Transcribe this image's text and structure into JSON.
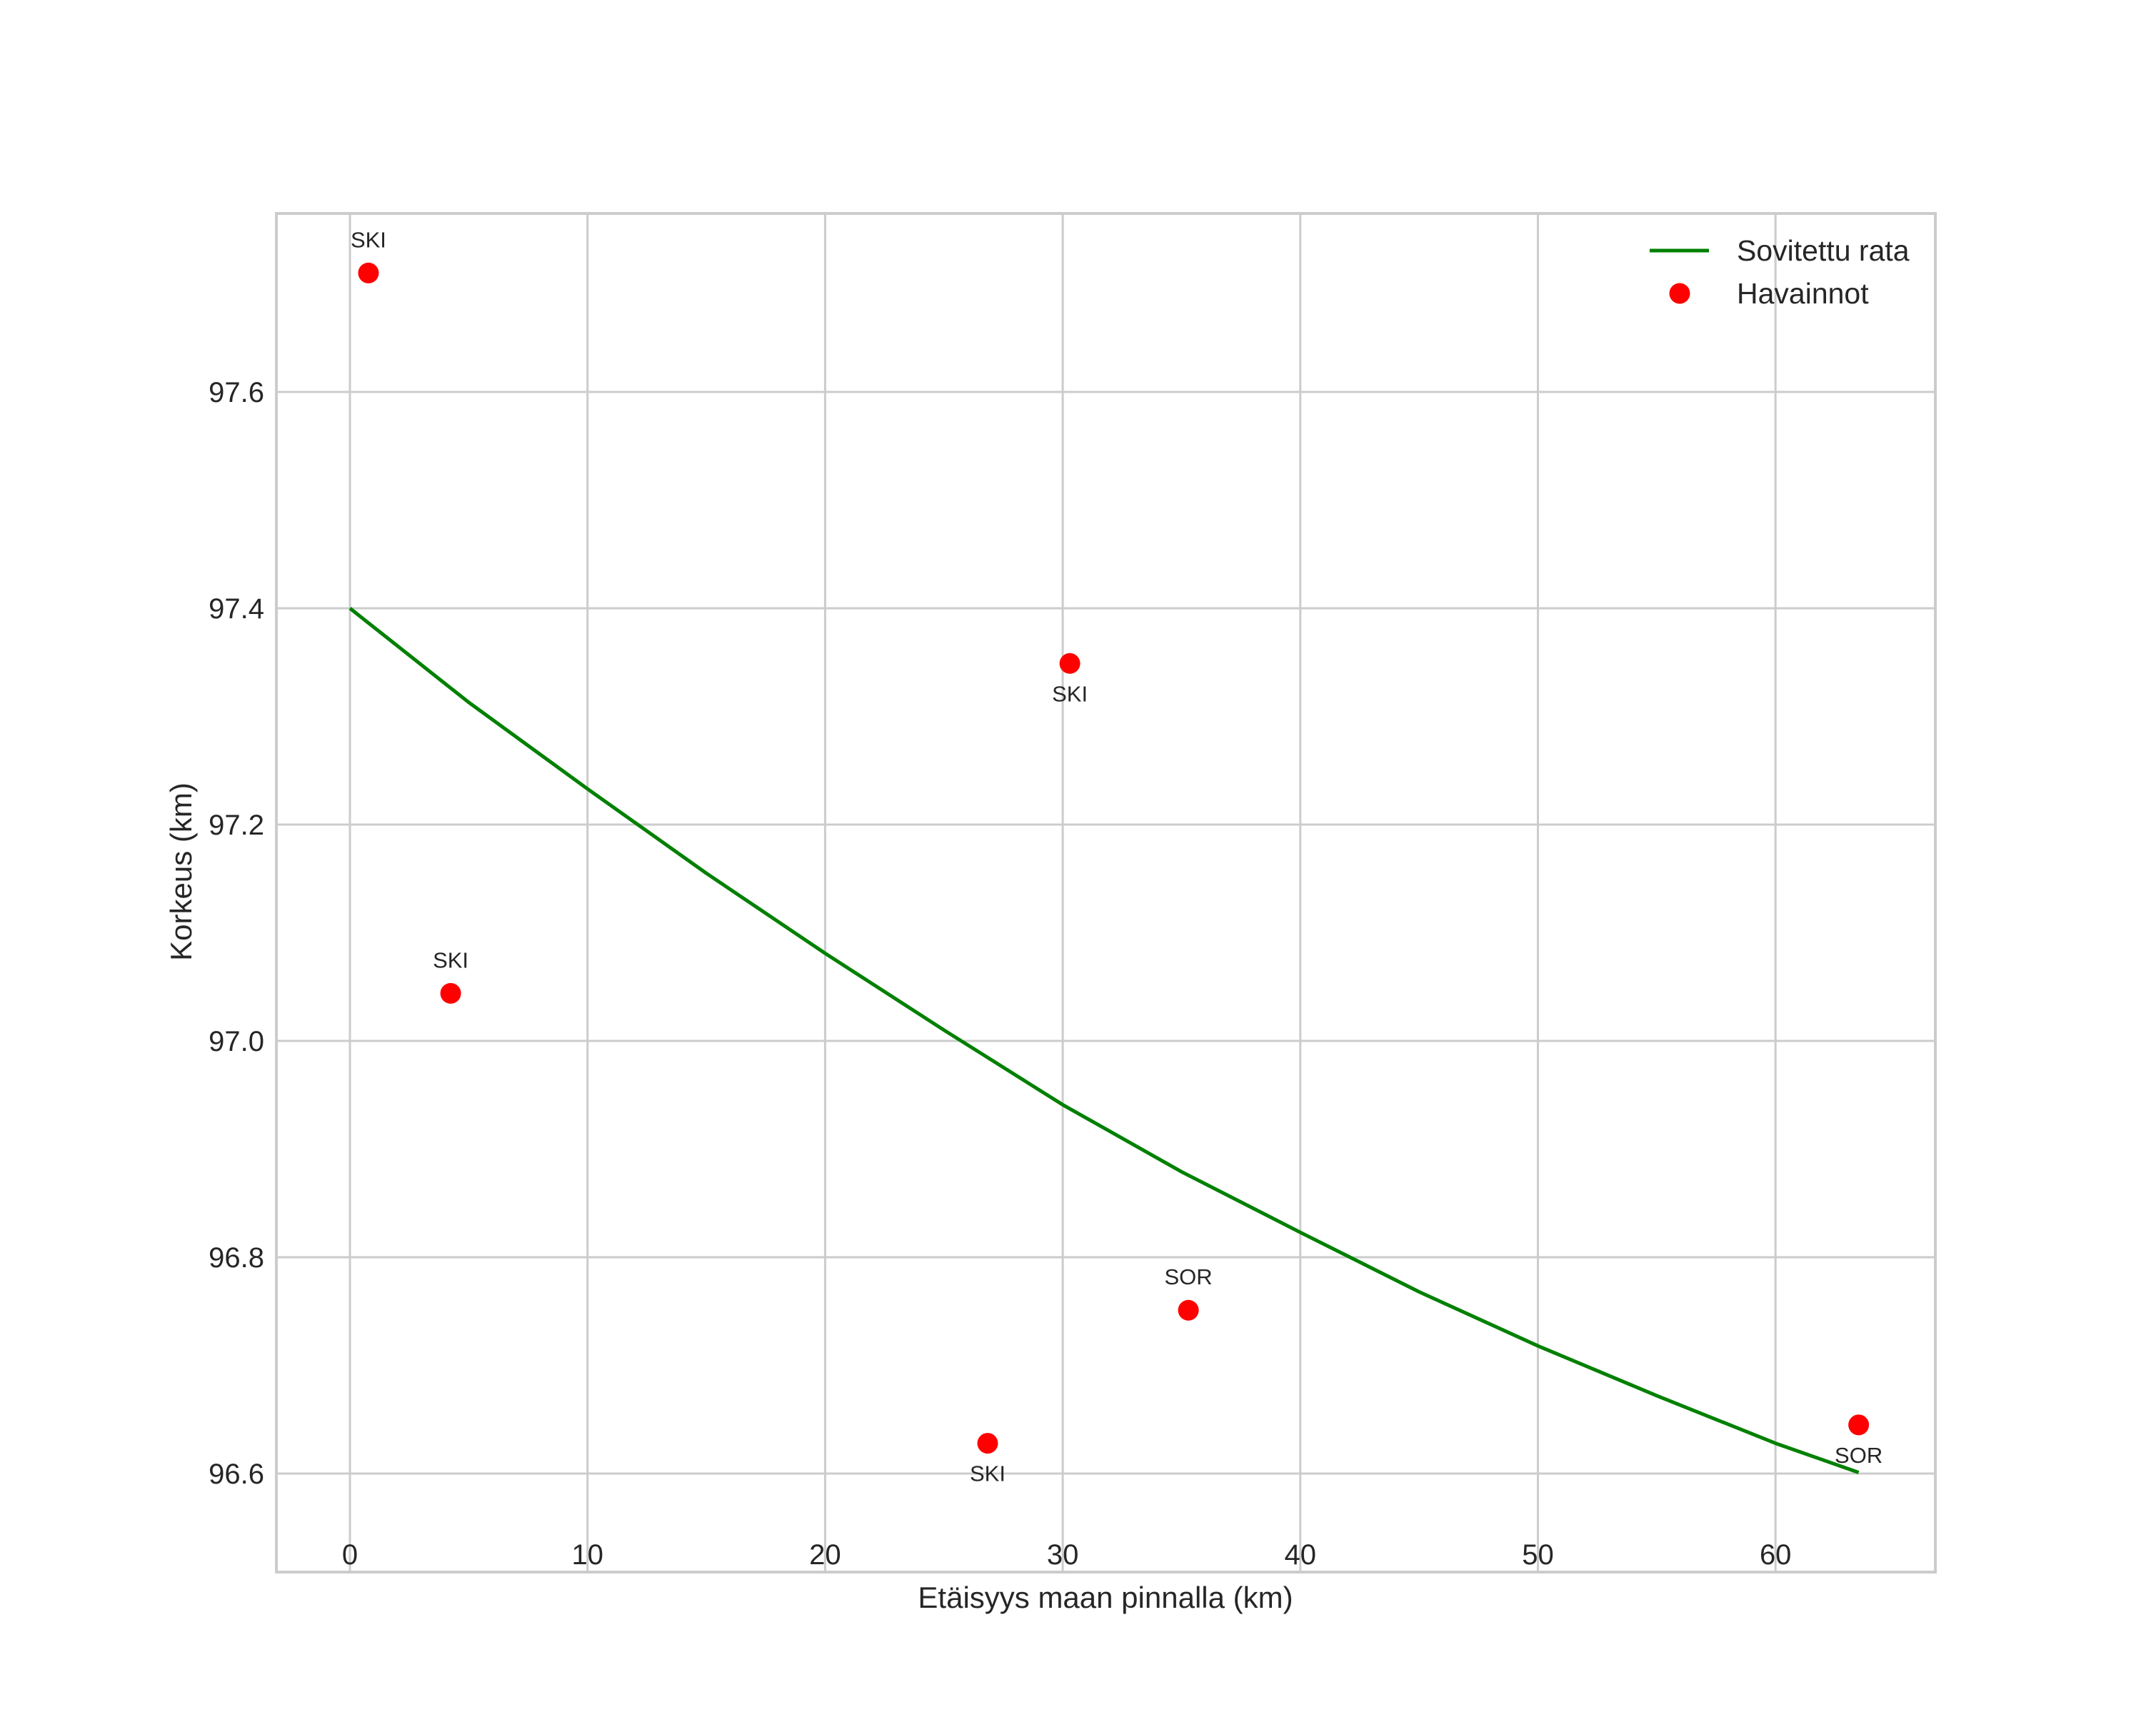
{
  "chart_data": {
    "type": "line",
    "title": "",
    "xlabel": "Etäisyys maan pinnalla (km)",
    "ylabel": "Korkeus (km)",
    "xlim": [
      -3.2,
      66.2
    ],
    "ylim": [
      96.509,
      97.766
    ],
    "grid": true,
    "legend_position": "upper right",
    "x_ticks": [
      0,
      10,
      20,
      30,
      40,
      50,
      60
    ],
    "x_tick_labels": [
      "0",
      "10",
      "20",
      "30",
      "40",
      "50",
      "60"
    ],
    "y_ticks": [
      96.6,
      96.8,
      97.0,
      97.2,
      97.4,
      97.6
    ],
    "y_tick_labels": [
      "96.6",
      "96.8",
      "97.0",
      "97.2",
      "97.4",
      "97.6"
    ],
    "series": [
      {
        "name": "Sovitettu rata",
        "kind": "line",
        "color": "#008000",
        "x": [
          0,
          5,
          10,
          15,
          20,
          25,
          30,
          35,
          40,
          45,
          50,
          55,
          60,
          63.5
        ],
        "y": [
          97.4,
          97.313,
          97.233,
          97.155,
          97.081,
          97.01,
          96.941,
          96.879,
          96.823,
          96.768,
          96.718,
          96.672,
          96.628,
          96.601
        ]
      },
      {
        "name": "Havainnot",
        "kind": "scatter",
        "color": "#ff0000",
        "points": [
          {
            "x": 0.78,
            "y": 97.71,
            "label": "SKI",
            "label_pos": "above"
          },
          {
            "x": 4.24,
            "y": 97.044,
            "label": "SKI",
            "label_pos": "above"
          },
          {
            "x": 30.3,
            "y": 97.349,
            "label": "SKI",
            "label_pos": "below"
          },
          {
            "x": 26.84,
            "y": 96.628,
            "label": "SKI",
            "label_pos": "below"
          },
          {
            "x": 35.29,
            "y": 96.751,
            "label": "SOR",
            "label_pos": "above"
          },
          {
            "x": 63.5,
            "y": 96.645,
            "label": "SOR",
            "label_pos": "below"
          }
        ]
      }
    ]
  },
  "legend": {
    "items": [
      {
        "label": "Sovitettu rata",
        "symbol": "line",
        "color": "#008000"
      },
      {
        "label": "Havainnot",
        "symbol": "dot",
        "color": "#ff0000"
      }
    ]
  }
}
